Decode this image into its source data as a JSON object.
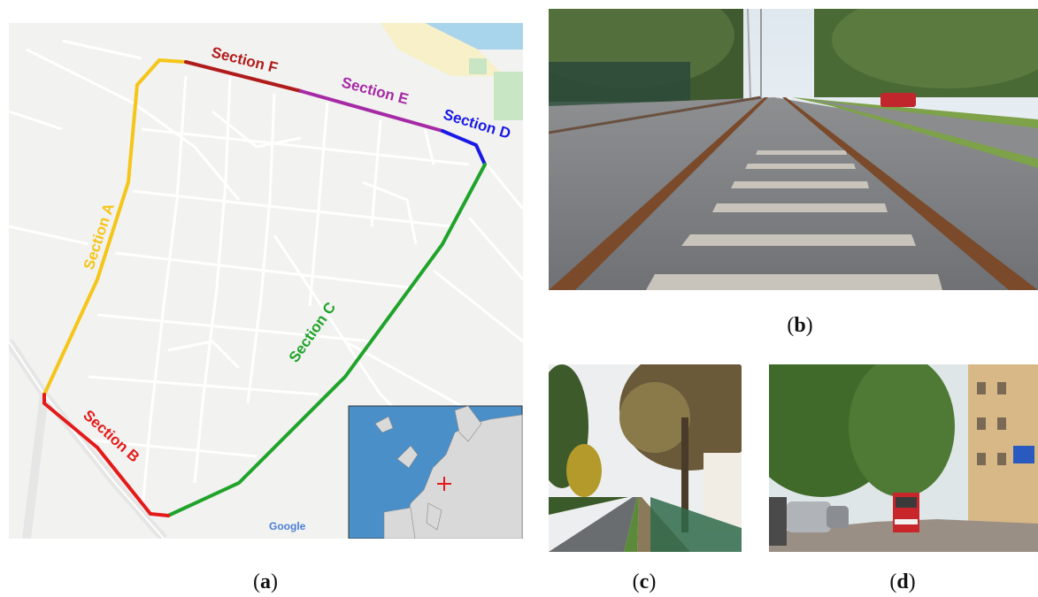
{
  "map": {
    "sections": [
      {
        "label": "Section A",
        "color": "#f5c518"
      },
      {
        "label": "Section B",
        "color": "#e41a1a"
      },
      {
        "label": "Section C",
        "color": "#1fa32a"
      },
      {
        "label": "Section D",
        "color": "#1a1ae6"
      },
      {
        "label": "Section E",
        "color": "#a52aa5"
      },
      {
        "label": "Section F",
        "color": "#b01c1c"
      }
    ],
    "attribution": "Google",
    "inset_marker": "location-cross"
  },
  "captions": {
    "a": {
      "open": "(",
      "letter": "a",
      "close": ")"
    },
    "b": {
      "open": "(",
      "letter": "b",
      "close": ")"
    },
    "c": {
      "open": "(",
      "letter": "c",
      "close": ")"
    },
    "d": {
      "open": "(",
      "letter": "d",
      "close": ")"
    }
  },
  "photos": {
    "b": "tram-track-close-up-photo",
    "c": "street-with-trees-photo",
    "d": "tram-in-tree-lined-street-photo"
  }
}
